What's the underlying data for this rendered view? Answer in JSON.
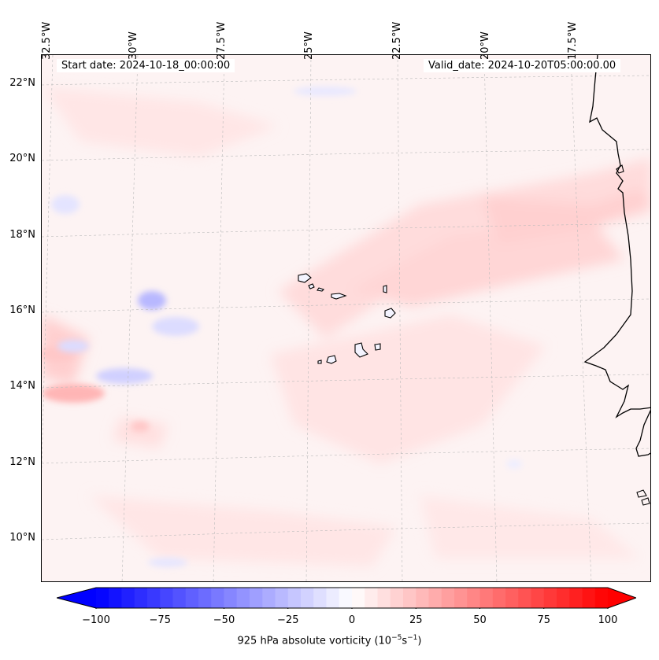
{
  "map": {
    "start_date": "Start date: 2024-10-18_00:00:00",
    "valid_date": "Valid_date: 2024-10-20T05:00:00.00",
    "lon_labels": [
      "32.5°W",
      "30°W",
      "27.5°W",
      "25°W",
      "22.5°W",
      "20°W",
      "17.5°W"
    ],
    "lat_labels": [
      "22°N",
      "20°N",
      "18°N",
      "16°N",
      "14°N",
      "12°N",
      "10°N"
    ],
    "field": "925 hPa absolute vorticity",
    "colors": {
      "negative": "#0000ff",
      "positive": "#ff0000",
      "neutral": "#ffffff",
      "coast": "#000000",
      "grid": "#bbbbbb"
    }
  },
  "colorbar": {
    "label_text": "925 hPa absolute vorticity (10",
    "label_exp1": "−5",
    "label_mid": "s",
    "label_exp2": "−1",
    "label_end": ")",
    "ticks": [
      "−100",
      "−75",
      "−50",
      "−25",
      "0",
      "25",
      "50",
      "75",
      "100"
    ],
    "tick_values": [
      -100,
      -75,
      -50,
      -25,
      0,
      25,
      50,
      75,
      100
    ],
    "range": [
      -100,
      100
    ]
  }
}
